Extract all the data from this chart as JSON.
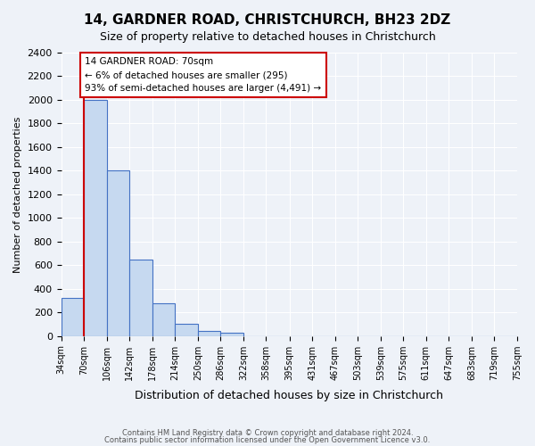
{
  "title": "14, GARDNER ROAD, CHRISTCHURCH, BH23 2DZ",
  "subtitle": "Size of property relative to detached houses in Christchurch",
  "xlabel": "Distribution of detached houses by size in Christchurch",
  "ylabel": "Number of detached properties",
  "bin_edges": [
    34,
    70,
    106,
    142,
    178,
    214,
    250,
    286,
    322,
    358,
    395,
    431,
    467,
    503,
    539,
    575,
    611,
    647,
    683,
    719,
    755
  ],
  "bar_heights": [
    320,
    2000,
    1400,
    650,
    280,
    100,
    45,
    25,
    0,
    0,
    0,
    0,
    0,
    0,
    0,
    0,
    0,
    0,
    0,
    0
  ],
  "bar_color": "#c6d9f0",
  "bar_edge_color": "#4472c4",
  "property_size": 70,
  "red_line_color": "#cc0000",
  "annotation_line1": "14 GARDNER ROAD: 70sqm",
  "annotation_line2": "← 6% of detached houses are smaller (295)",
  "annotation_line3": "93% of semi-detached houses are larger (4,491) →",
  "annotation_box_color": "#ffffff",
  "annotation_box_edge_color": "#cc0000",
  "ylim": [
    0,
    2400
  ],
  "yticks": [
    0,
    200,
    400,
    600,
    800,
    1000,
    1200,
    1400,
    1600,
    1800,
    2000,
    2200,
    2400
  ],
  "tick_labels": [
    "34sqm",
    "70sqm",
    "106sqm",
    "142sqm",
    "178sqm",
    "214sqm",
    "250sqm",
    "286sqm",
    "322sqm",
    "358sqm",
    "395sqm",
    "431sqm",
    "467sqm",
    "503sqm",
    "539sqm",
    "575sqm",
    "611sqm",
    "647sqm",
    "683sqm",
    "719sqm",
    "755sqm"
  ],
  "footer_line1": "Contains HM Land Registry data © Crown copyright and database right 2024.",
  "footer_line2": "Contains public sector information licensed under the Open Government Licence v3.0.",
  "background_color": "#eef2f8",
  "plot_background_color": "#eef2f8"
}
